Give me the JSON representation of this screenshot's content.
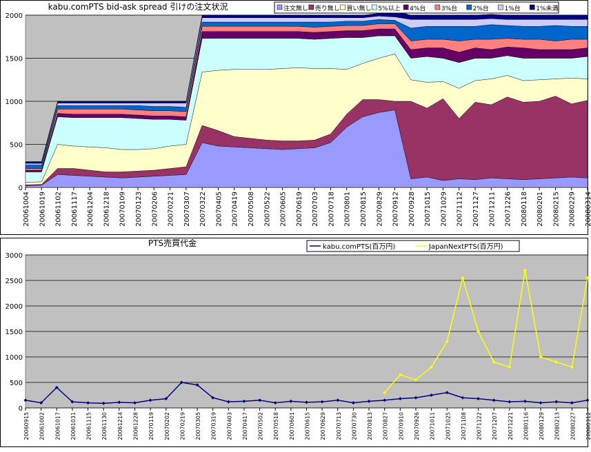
{
  "chart_data": [
    {
      "type": "stacked-area",
      "title": "kabu.comPTS bid-ask spread 引けの注文状況",
      "categories": [
        "20061004",
        "20061019",
        "20061102",
        "20061117",
        "20061204",
        "20061218",
        "20070109",
        "20070123",
        "20070206",
        "20070221",
        "20070307",
        "20070322",
        "20070405",
        "20070419",
        "20070508",
        "20070522",
        "20070605",
        "20070619",
        "20070703",
        "20070718",
        "20070801",
        "20070815",
        "20070829",
        "20070912",
        "20070928",
        "20071015",
        "20071029",
        "20071112",
        "20071127",
        "20071211",
        "20071226",
        "20080118",
        "20080201",
        "20080215",
        "20080229",
        "20080314"
      ],
      "ylim": [
        0,
        2000
      ],
      "yticks": [
        0,
        500,
        1000,
        1500,
        2000
      ],
      "grid": true,
      "series": [
        {
          "name": "注文無し",
          "color": "#9999ff",
          "values": [
            20,
            25,
            150,
            140,
            130,
            120,
            110,
            120,
            130,
            140,
            150,
            520,
            480,
            470,
            460,
            450,
            440,
            450,
            460,
            520,
            700,
            820,
            870,
            900,
            100,
            120,
            80,
            100,
            90,
            110,
            100,
            90,
            100,
            110,
            120,
            110
          ]
        },
        {
          "name": "売り無し",
          "color": "#993366",
          "values": [
            10,
            10,
            70,
            80,
            70,
            60,
            70,
            70,
            70,
            80,
            90,
            200,
            180,
            120,
            110,
            100,
            100,
            90,
            90,
            100,
            150,
            200,
            150,
            100,
            900,
            800,
            950,
            700,
            900,
            850,
            950,
            900,
            900,
            950,
            850,
            900
          ]
        },
        {
          "name": "買い無し",
          "color": "#ffffcc",
          "values": [
            30,
            30,
            280,
            260,
            270,
            280,
            260,
            250,
            250,
            260,
            260,
            620,
            700,
            780,
            800,
            820,
            840,
            850,
            830,
            760,
            520,
            420,
            480,
            550,
            250,
            300,
            200,
            350,
            250,
            300,
            250,
            250,
            250,
            200,
            300,
            250
          ]
        },
        {
          "name": "5%以上",
          "color": "#ccffff",
          "values": [
            120,
            115,
            320,
            330,
            340,
            350,
            370,
            360,
            340,
            310,
            280,
            390,
            370,
            360,
            360,
            360,
            350,
            340,
            340,
            350,
            370,
            300,
            260,
            210,
            250,
            300,
            270,
            300,
            260,
            240,
            230,
            260,
            250,
            240,
            230,
            260
          ]
        },
        {
          "name": "4%台",
          "color": "#660066",
          "values": [
            20,
            20,
            40,
            40,
            40,
            40,
            40,
            40,
            40,
            40,
            40,
            80,
            80,
            80,
            80,
            80,
            80,
            80,
            80,
            80,
            80,
            80,
            80,
            80,
            100,
            100,
            120,
            120,
            120,
            100,
            100,
            120,
            100,
            100,
            100,
            100
          ]
        },
        {
          "name": "3%台",
          "color": "#ff8080",
          "values": [
            20,
            20,
            50,
            60,
            60,
            60,
            60,
            60,
            60,
            60,
            60,
            60,
            60,
            60,
            60,
            60,
            60,
            60,
            60,
            60,
            60,
            60,
            60,
            60,
            100,
            100,
            100,
            130,
            100,
            120,
            100,
            100,
            120,
            100,
            120,
            100
          ]
        },
        {
          "name": "2%台",
          "color": "#0066cc",
          "values": [
            40,
            40,
            40,
            40,
            40,
            40,
            40,
            50,
            50,
            50,
            50,
            50,
            50,
            50,
            50,
            50,
            50,
            50,
            60,
            50,
            50,
            50,
            50,
            40,
            150,
            150,
            150,
            170,
            150,
            170,
            150,
            150,
            150,
            180,
            150,
            150
          ]
        },
        {
          "name": "1%台",
          "color": "#ccccff",
          "values": [
            20,
            20,
            30,
            30,
            30,
            30,
            30,
            30,
            40,
            40,
            50,
            50,
            50,
            50,
            50,
            50,
            50,
            50,
            50,
            50,
            40,
            40,
            40,
            40,
            100,
            80,
            80,
            80,
            80,
            70,
            70,
            80,
            80,
            70,
            80,
            80
          ]
        },
        {
          "name": "1%未満",
          "color": "#000080",
          "values": [
            20,
            20,
            20,
            20,
            20,
            20,
            20,
            20,
            20,
            20,
            20,
            30,
            30,
            30,
            30,
            30,
            30,
            30,
            30,
            30,
            30,
            30,
            30,
            70,
            50,
            50,
            50,
            50,
            50,
            50,
            50,
            50,
            50,
            50,
            50,
            50
          ]
        }
      ]
    },
    {
      "type": "line",
      "title": "PTS売買代金",
      "categories": [
        "20060915",
        "20061002",
        "20061017",
        "20061031",
        "20061115",
        "20061130",
        "20061214",
        "20061228",
        "20070119",
        "20070202",
        "20070219",
        "20070305",
        "20070319",
        "20070403",
        "20070417",
        "20070502",
        "20070518",
        "20070601",
        "20070615",
        "20070629",
        "20070713",
        "20070730",
        "20070813",
        "20070827",
        "20070910",
        "20070926",
        "20071011",
        "20071025",
        "20071108",
        "20071122",
        "20071207",
        "20071221",
        "20080116",
        "20080129",
        "20080213",
        "20080227",
        "20080312"
      ],
      "ylim": [
        0,
        3000
      ],
      "yticks": [
        0,
        500,
        1000,
        1500,
        2000,
        2500,
        3000
      ],
      "grid": true,
      "series": [
        {
          "name": "kabu.comPTS(百万円)",
          "color": "#000080",
          "values": [
            150,
            100,
            400,
            120,
            100,
            90,
            110,
            100,
            150,
            180,
            500,
            450,
            200,
            120,
            130,
            150,
            100,
            130,
            110,
            120,
            150,
            100,
            130,
            150,
            180,
            200,
            250,
            300,
            200,
            180,
            150,
            120,
            130,
            100,
            120,
            100,
            150
          ]
        },
        {
          "name": "JapanNextPTS(百万円)",
          "color": "#ffff00",
          "values": [
            null,
            null,
            null,
            null,
            null,
            null,
            null,
            null,
            null,
            null,
            null,
            null,
            null,
            null,
            null,
            null,
            null,
            null,
            null,
            null,
            null,
            null,
            null,
            300,
            650,
            550,
            800,
            1300,
            2550,
            1500,
            900,
            800,
            2700,
            1000,
            900,
            800,
            2550
          ]
        }
      ]
    }
  ]
}
